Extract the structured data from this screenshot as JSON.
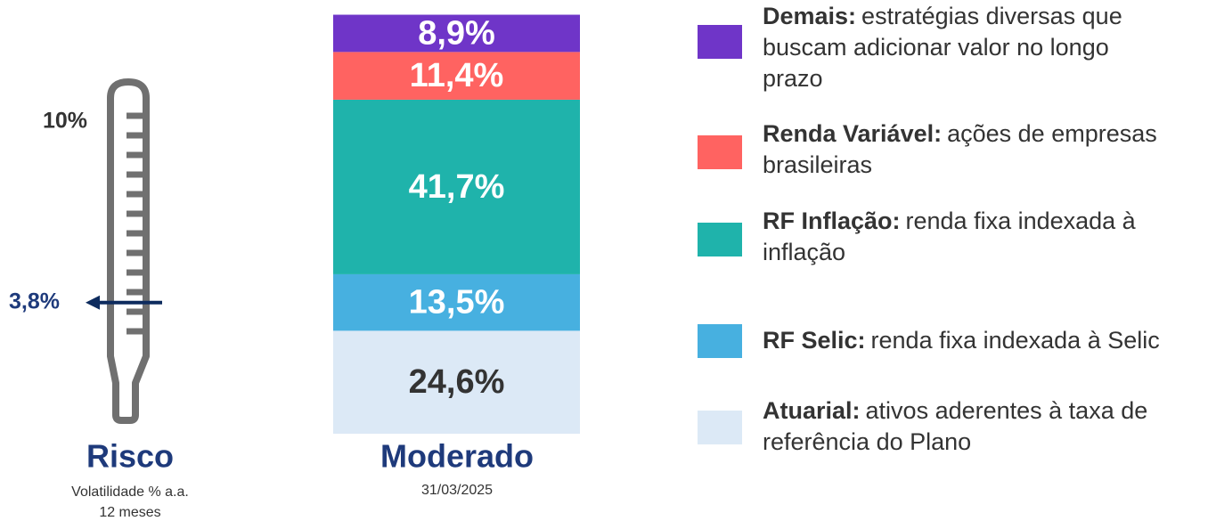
{
  "chart_data": {
    "type": "stacked_bar",
    "category": "Moderado",
    "date": "31/03/2025",
    "ylim": [
      0,
      100
    ],
    "series": [
      {
        "name": "Demais:",
        "description": [
          "estratégias diversas que",
          "buscam adicionar valor no longo",
          "prazo"
        ],
        "color": "#6f35c8",
        "values": [
          8.9
        ],
        "value_labels": [
          "8,9%"
        ]
      },
      {
        "name": "Renda Variável:",
        "description": [
          "ações de empresas",
          "brasileiras"
        ],
        "color": "#ff6361",
        "values": [
          11.4
        ],
        "value_labels": [
          "11,4%"
        ]
      },
      {
        "name": "RF Inflação:",
        "description": [
          "renda fixa indexada à",
          "inflação"
        ],
        "color": "#1fb3ab",
        "values": [
          41.7
        ],
        "value_labels": [
          "41,7%"
        ]
      },
      {
        "name": "RF Selic:",
        "description": [
          "renda fixa indexada à Selic"
        ],
        "color": "#47b0e0",
        "values": [
          13.5
        ],
        "value_labels": [
          "13,5%"
        ]
      },
      {
        "name": "Atuarial:",
        "description": [
          "ativos aderentes à taxa de",
          "referência do Plano"
        ],
        "color": "#dce9f6",
        "values": [
          24.6
        ],
        "value_labels": [
          "24,6%"
        ]
      }
    ],
    "thermometer": {
      "title": "Risco",
      "subtitle": [
        "Volatilidade % a.a.",
        "12 meses"
      ],
      "max": {
        "value": 10,
        "label": "10%"
      },
      "value": 3.8,
      "value_label": "3,8%"
    }
  }
}
